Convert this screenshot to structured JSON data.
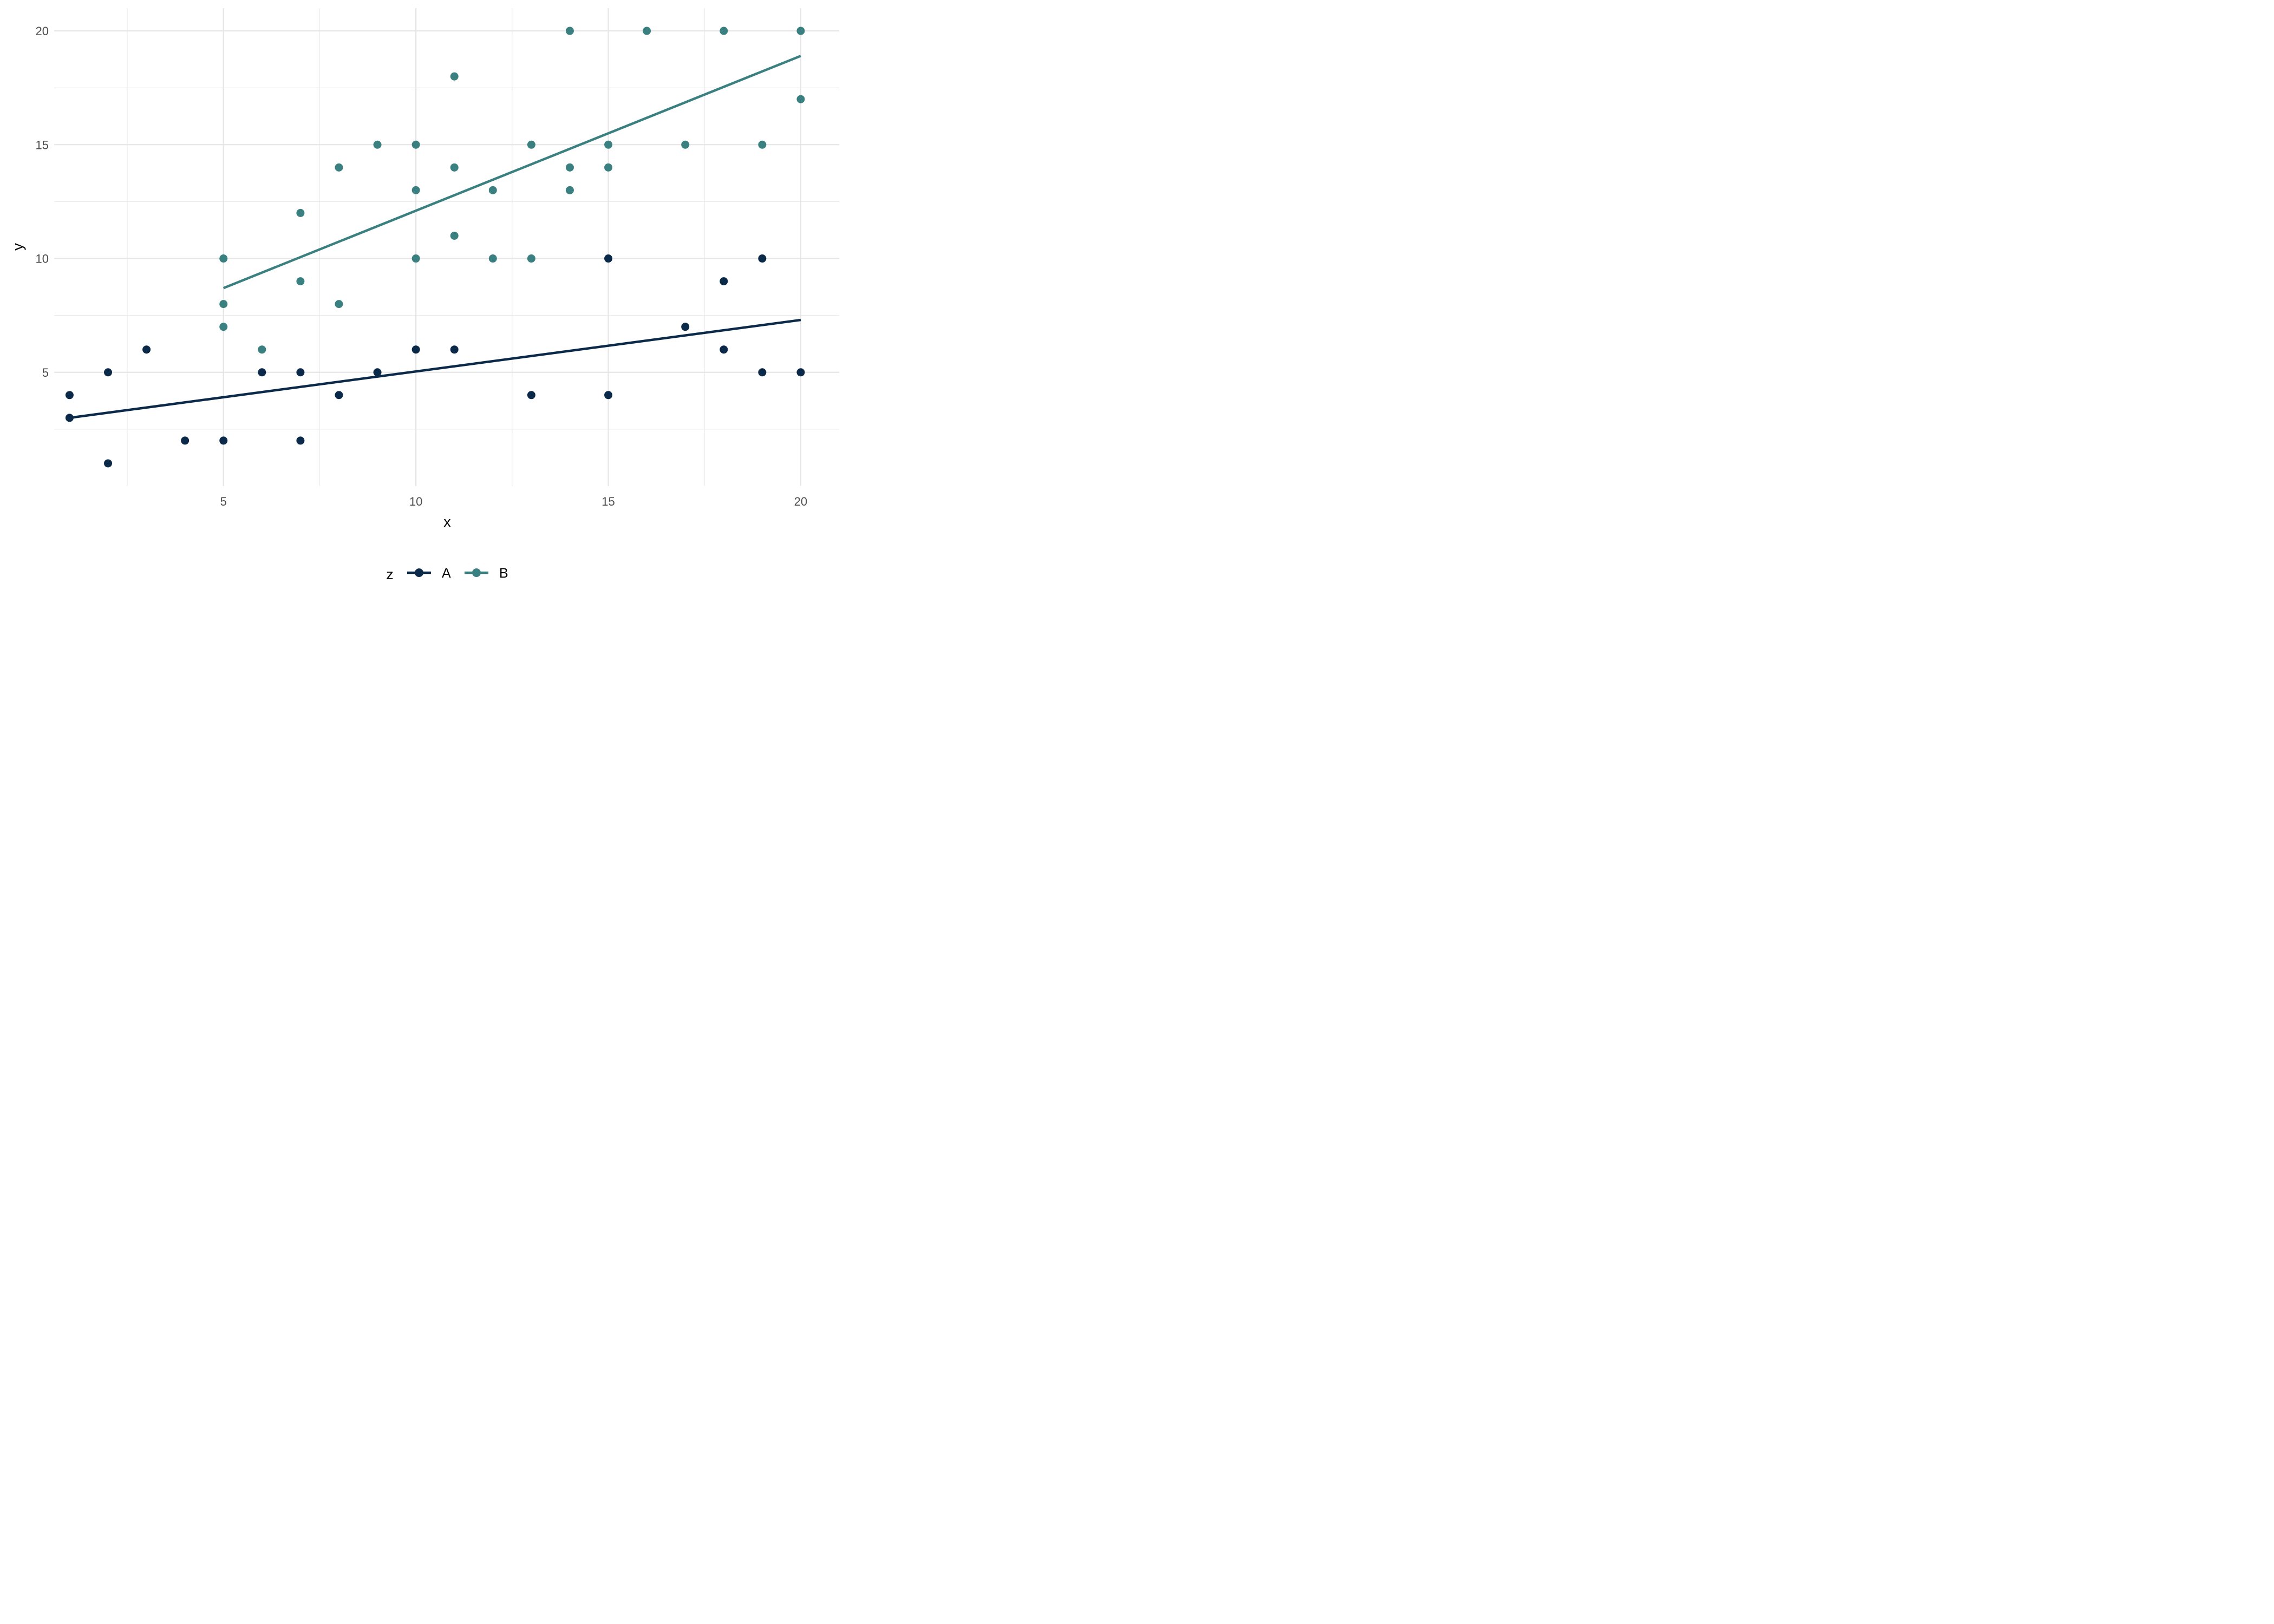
{
  "chart_data": {
    "type": "scatter",
    "xlabel": "x",
    "ylabel": "y",
    "xlim": [
      0.6,
      21.0
    ],
    "ylim": [
      0.0,
      21.0
    ],
    "x_ticks": [
      5,
      10,
      15,
      20
    ],
    "y_ticks": [
      5,
      10,
      15,
      20
    ],
    "x_minor_ticks": [
      2.5,
      7.5,
      12.5,
      17.5
    ],
    "y_minor_ticks": [
      2.5,
      7.5,
      12.5,
      17.5
    ],
    "grid": true,
    "legend": {
      "title": "z",
      "placement": "bottom",
      "entries": [
        "A",
        "B"
      ]
    },
    "series": [
      {
        "name": "A",
        "color": "#0b2a4a",
        "points": [
          [
            1,
            4
          ],
          [
            1,
            3
          ],
          [
            2,
            5
          ],
          [
            2,
            1
          ],
          [
            3,
            6
          ],
          [
            4,
            2
          ],
          [
            5,
            2
          ],
          [
            6,
            5
          ],
          [
            7,
            5
          ],
          [
            7,
            2
          ],
          [
            8,
            4
          ],
          [
            9,
            5
          ],
          [
            10,
            6
          ],
          [
            11,
            6
          ],
          [
            13,
            4
          ],
          [
            15,
            10
          ],
          [
            15,
            4
          ],
          [
            17,
            7
          ],
          [
            18,
            9
          ],
          [
            18,
            6
          ],
          [
            19,
            10
          ],
          [
            19,
            5
          ],
          [
            20,
            5
          ]
        ],
        "fit": {
          "x": [
            1,
            20
          ],
          "y": [
            3.0,
            7.3
          ]
        }
      },
      {
        "name": "B",
        "color": "#3a8080",
        "points": [
          [
            5,
            10
          ],
          [
            5,
            8
          ],
          [
            5,
            7
          ],
          [
            6,
            6
          ],
          [
            7,
            12
          ],
          [
            7,
            9
          ],
          [
            8,
            14
          ],
          [
            8,
            8
          ],
          [
            9,
            15
          ],
          [
            10,
            15
          ],
          [
            10,
            13
          ],
          [
            10,
            10
          ],
          [
            11,
            18
          ],
          [
            11,
            14
          ],
          [
            11,
            11
          ],
          [
            12,
            13
          ],
          [
            12,
            10
          ],
          [
            13,
            15
          ],
          [
            13,
            10
          ],
          [
            14,
            20
          ],
          [
            14,
            14
          ],
          [
            14,
            13
          ],
          [
            15,
            15
          ],
          [
            15,
            14
          ],
          [
            16,
            20
          ],
          [
            17,
            15
          ],
          [
            18,
            20
          ],
          [
            19,
            15
          ],
          [
            20,
            20
          ],
          [
            20,
            17
          ]
        ],
        "fit": {
          "x": [
            5,
            20
          ],
          "y": [
            8.7,
            18.9
          ]
        }
      }
    ]
  }
}
